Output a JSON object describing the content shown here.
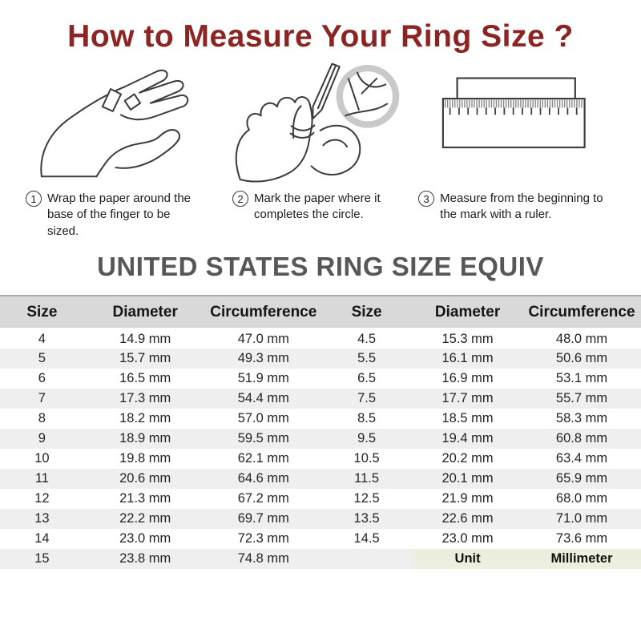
{
  "title": "How  to Measure Your Ring Size ?",
  "steps": [
    {
      "number": "1",
      "icon": "hand-with-paper-strip-icon",
      "caption": "Wrap the paper around the base of the finger to be sized."
    },
    {
      "number": "2",
      "icon": "hand-marking-pencil-icon",
      "caption": "Mark the paper where it completes the circle."
    },
    {
      "number": "3",
      "icon": "ruler-with-paper-icon",
      "caption": "Measure from the beginning to the mark with a ruler."
    }
  ],
  "table": {
    "heading": "UNITED STATES RING SIZE EQUIV",
    "columns": [
      "Size",
      "Diameter",
      "Circumference",
      "Size",
      "Diameter",
      "Circumference"
    ],
    "rows": [
      [
        "4",
        "14.9 mm",
        "47.0 mm",
        "4.5",
        "15.3 mm",
        "48.0 mm"
      ],
      [
        "5",
        "15.7 mm",
        "49.3  mm",
        "5.5",
        "16.1 mm",
        "50.6 mm"
      ],
      [
        "6",
        "16.5 mm",
        "51.9 mm",
        "6.5",
        "16.9 mm",
        "53.1 mm"
      ],
      [
        "7",
        "17.3 mm",
        "54.4 mm",
        "7.5",
        "17.7 mm",
        "55.7 mm"
      ],
      [
        "8",
        "18.2 mm",
        "57.0 mm",
        "8.5",
        "18.5 mm",
        "58.3 mm"
      ],
      [
        "9",
        "18.9 mm",
        "59.5 mm",
        "9.5",
        "19.4 mm",
        "60.8 mm"
      ],
      [
        "10",
        "19.8  mm",
        "62.1 mm",
        "10.5",
        "20.2 mm",
        "63.4 mm"
      ],
      [
        "11",
        "20.6  mm",
        "64.6 mm",
        "11.5",
        "20.1 mm",
        "65.9 mm"
      ],
      [
        "12",
        "21.3  mm",
        "67.2 mm",
        "12.5",
        "21.9 mm",
        "68.0 mm"
      ],
      [
        "13",
        "22.2 mm",
        "69.7 mm",
        "13.5",
        "22.6 mm",
        "71.0 mm"
      ],
      [
        "14",
        "23.0 mm",
        "72.3 mm",
        "14.5",
        "23.0 mm",
        "73.6 mm"
      ],
      [
        "15",
        "23.8 mm",
        "74.8 mm",
        "",
        "Unit",
        "Millimeter"
      ]
    ]
  },
  "colors": {
    "title_red": "#8d2424",
    "heading_gray": "#565759",
    "table_header_bg": "#d9d9d9",
    "row_stripe": "#efeff0",
    "unit_cell_green": "#ecefdd",
    "line_art_stroke": "#3d3d3d",
    "magnifier_ring_gray": "#c9c9c9"
  }
}
